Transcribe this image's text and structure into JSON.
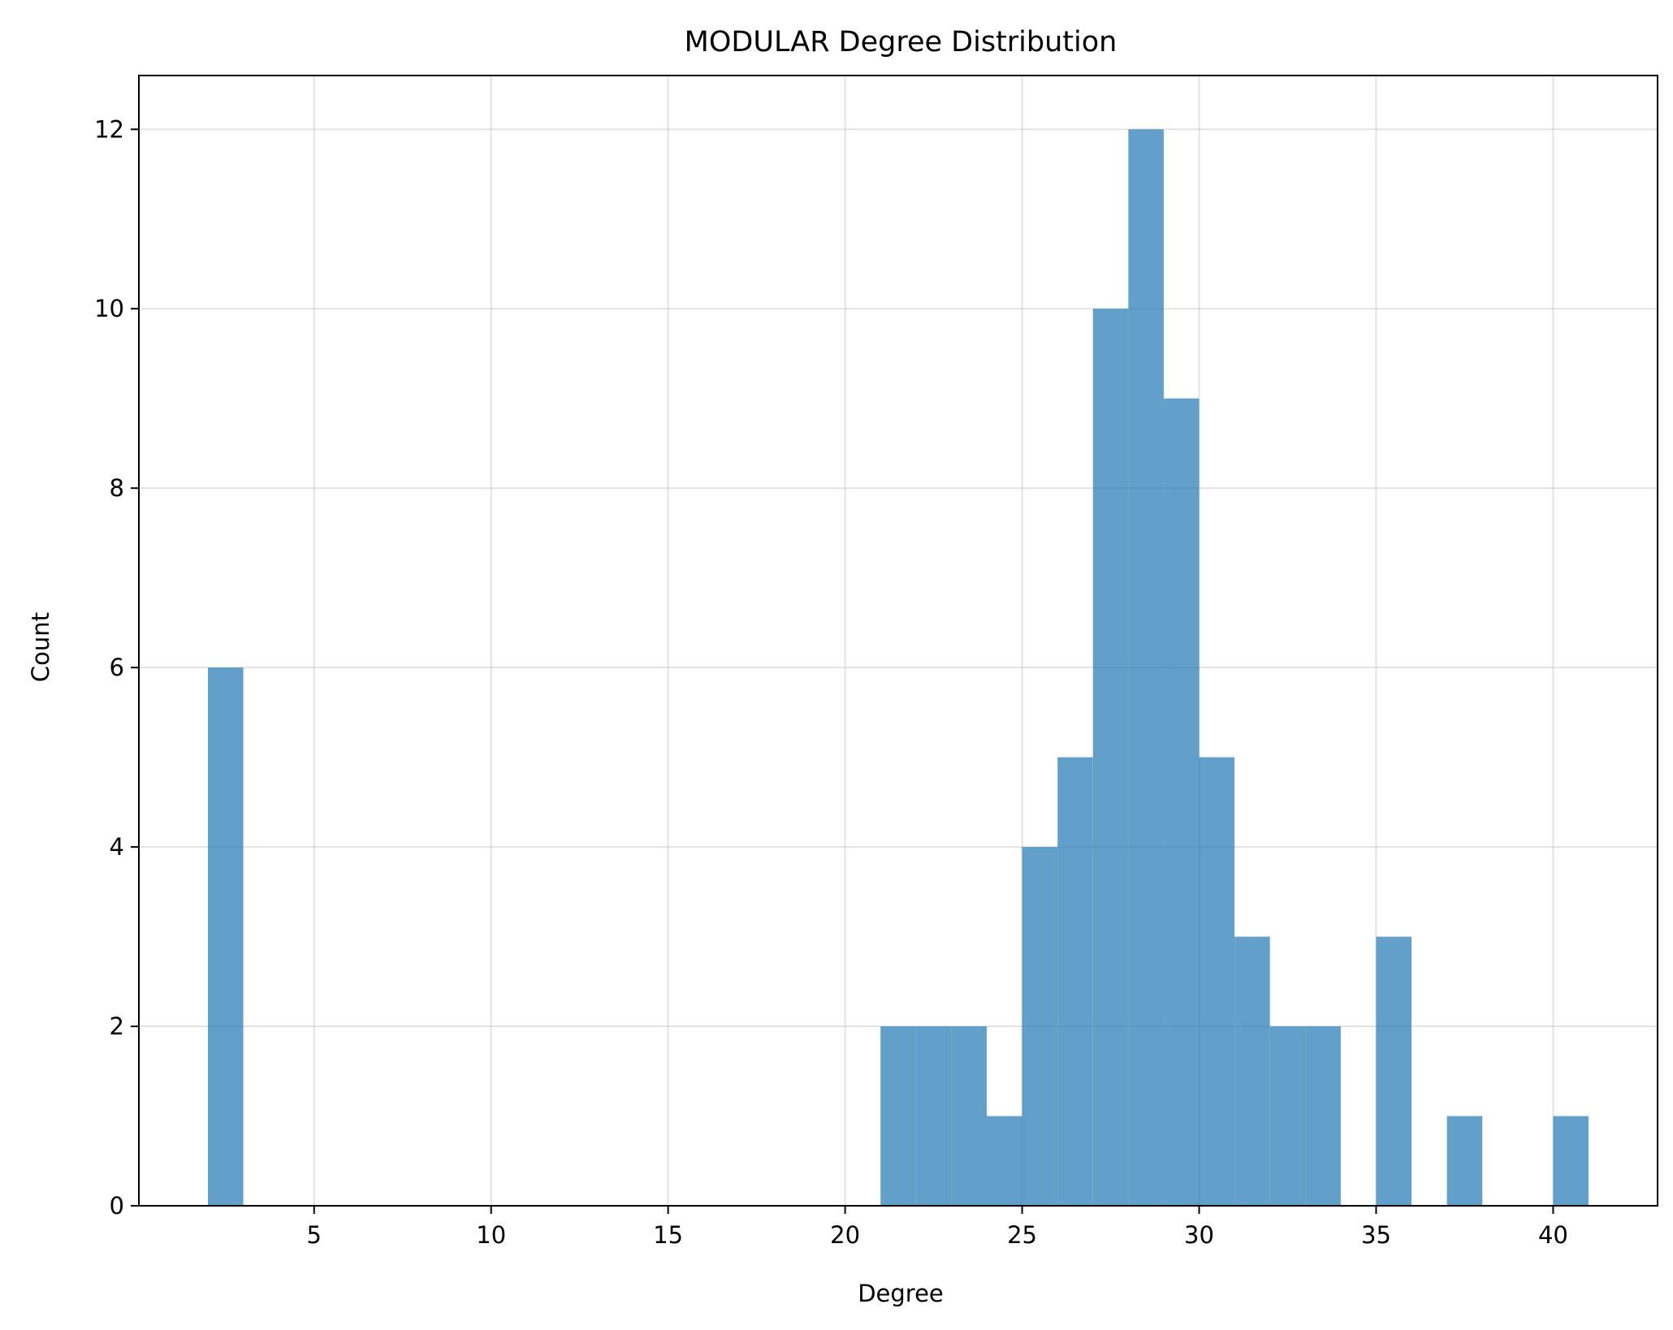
{
  "chart_data": {
    "type": "bar",
    "title": "MODULAR Degree Distribution",
    "xlabel": "Degree",
    "ylabel": "Count",
    "xlim": [
      0.05,
      42.95
    ],
    "ylim": [
      0,
      12.6
    ],
    "xticks": [
      5,
      10,
      15,
      20,
      25,
      30,
      35,
      40
    ],
    "yticks": [
      0,
      2,
      4,
      6,
      8,
      10,
      12
    ],
    "grid": true,
    "bar_color": "#1f77b4",
    "bar_opacity": 0.7,
    "bins": [
      {
        "x0": 2,
        "x1": 3,
        "count": 6
      },
      {
        "x0": 21,
        "x1": 22,
        "count": 2
      },
      {
        "x0": 22,
        "x1": 23,
        "count": 2
      },
      {
        "x0": 23,
        "x1": 24,
        "count": 2
      },
      {
        "x0": 24,
        "x1": 25,
        "count": 1
      },
      {
        "x0": 25,
        "x1": 26,
        "count": 4
      },
      {
        "x0": 26,
        "x1": 27,
        "count": 5
      },
      {
        "x0": 27,
        "x1": 28,
        "count": 10
      },
      {
        "x0": 28,
        "x1": 29,
        "count": 12
      },
      {
        "x0": 29,
        "x1": 30,
        "count": 9
      },
      {
        "x0": 30,
        "x1": 31,
        "count": 5
      },
      {
        "x0": 31,
        "x1": 32,
        "count": 3
      },
      {
        "x0": 32,
        "x1": 33,
        "count": 2
      },
      {
        "x0": 33,
        "x1": 34,
        "count": 2
      },
      {
        "x0": 35,
        "x1": 36,
        "count": 3
      },
      {
        "x0": 37,
        "x1": 38,
        "count": 1
      },
      {
        "x0": 40,
        "x1": 41,
        "count": 1
      }
    ]
  }
}
